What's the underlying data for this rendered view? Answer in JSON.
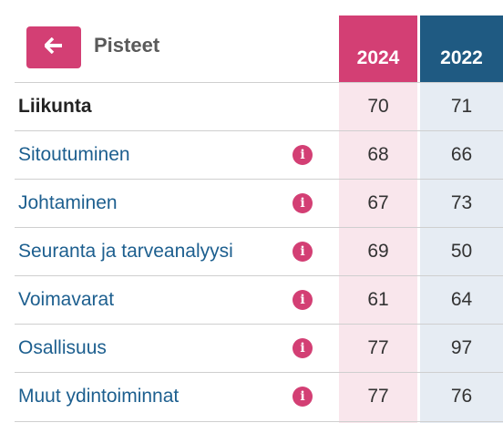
{
  "header": {
    "title": "Pisteet",
    "back_icon": "arrow-left-icon",
    "years": [
      "2024",
      "2022"
    ]
  },
  "colors": {
    "accent_pink": "#d33f74",
    "accent_blue": "#1f5a82",
    "link_blue": "#1d5f8f"
  },
  "rows": [
    {
      "label": "Liikunta",
      "v2024": "70",
      "v2022": "71",
      "info": false
    },
    {
      "label": "Sitoutuminen",
      "v2024": "68",
      "v2022": "66",
      "info": true
    },
    {
      "label": "Johtaminen",
      "v2024": "67",
      "v2022": "73",
      "info": true
    },
    {
      "label": "Seuranta ja tarveanalyysi",
      "v2024": "69",
      "v2022": "50",
      "info": true
    },
    {
      "label": "Voimavarat",
      "v2024": "61",
      "v2022": "64",
      "info": true
    },
    {
      "label": "Osallisuus",
      "v2024": "77",
      "v2022": "97",
      "info": true
    },
    {
      "label": "Muut ydintoiminnat",
      "v2024": "77",
      "v2022": "76",
      "info": true
    }
  ],
  "info_glyph": "i"
}
